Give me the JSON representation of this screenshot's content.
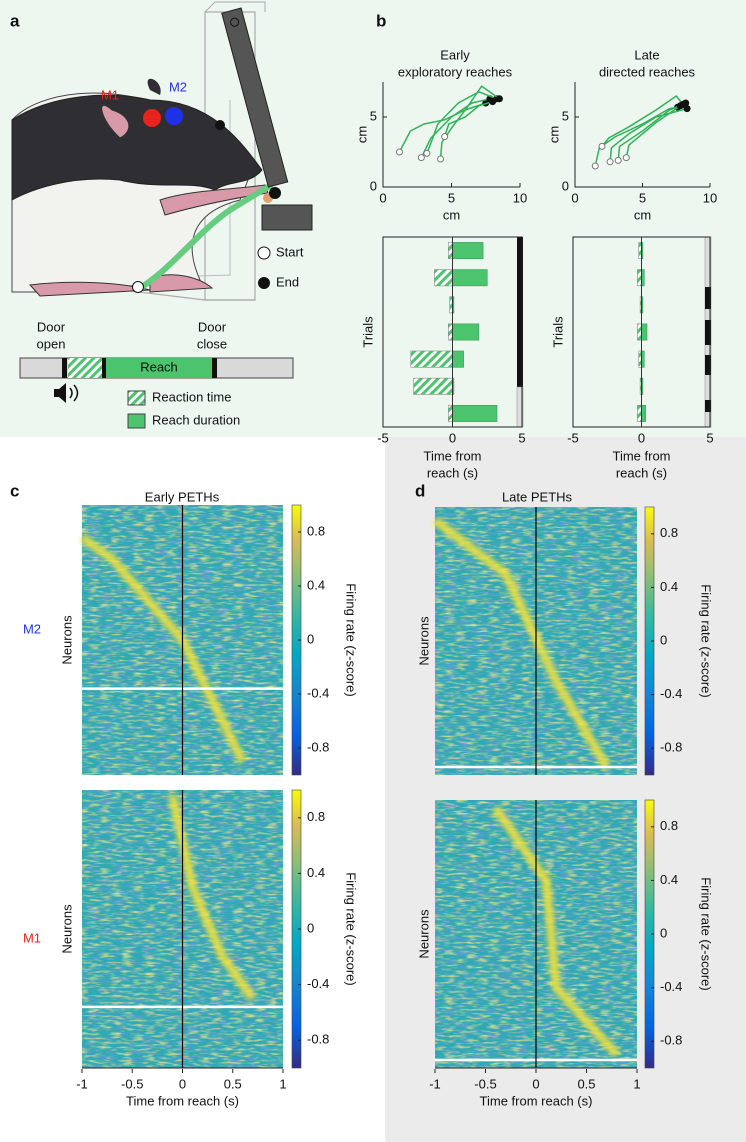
{
  "panel_labels": [
    "a",
    "b",
    "c",
    "d"
  ],
  "diagram": {
    "areas": [
      "M1",
      "M2"
    ],
    "markers": [
      "Start",
      "End"
    ],
    "door_open": [
      "Door",
      "open"
    ],
    "door_close": [
      "Door",
      "close"
    ],
    "reach": "Reach",
    "key": [
      "Reaction time",
      "Reach duration"
    ]
  },
  "chart_data": [
    {
      "type": "trajectory",
      "title": [
        "Early",
        "exploratory reaches"
      ],
      "xlabel": "cm",
      "ylabel": "cm",
      "xlim": [
        0,
        10
      ],
      "ylim": [
        0,
        7.5
      ],
      "xticks": [
        0,
        5,
        10
      ],
      "yticks": [
        0,
        5
      ],
      "color": "#2fb25a",
      "series": [
        {
          "x": [
            1.2,
            2,
            3,
            4.5,
            6,
            7.5
          ],
          "y": [
            2.5,
            4,
            4.5,
            4.8,
            5.5,
            6
          ]
        },
        {
          "x": [
            2.8,
            3.5,
            5,
            6.5,
            7.8
          ],
          "y": [
            2.1,
            3.5,
            5,
            6,
            6.3
          ]
        },
        {
          "x": [
            3.2,
            3.6,
            4,
            5.5,
            7,
            8.3
          ],
          "y": [
            2.4,
            3.4,
            4.5,
            6,
            6.8,
            6.3
          ]
        },
        {
          "x": [
            4.2,
            4.3,
            5,
            6,
            7.2,
            8.5
          ],
          "y": [
            2,
            3.2,
            4.2,
            5.5,
            7.2,
            6.3
          ]
        },
        {
          "x": [
            4.5,
            4.8,
            6,
            7,
            8
          ],
          "y": [
            3.6,
            4.5,
            5,
            5.8,
            6.1
          ]
        }
      ]
    },
    {
      "type": "trajectory",
      "title": [
        "Late",
        "directed reaches"
      ],
      "xlabel": "cm",
      "ylabel": "cm",
      "xlim": [
        0,
        10
      ],
      "ylim": [
        0,
        7.5
      ],
      "xticks": [
        0,
        5,
        10
      ],
      "yticks": [
        0,
        5
      ],
      "color": "#2fb25a",
      "series": [
        {
          "x": [
            1.5,
            1.8,
            3,
            5,
            7,
            7.6
          ],
          "y": [
            1.5,
            2.8,
            3.6,
            4.5,
            5.6,
            5.7
          ]
        },
        {
          "x": [
            2,
            2.5,
            4,
            6,
            7.5,
            8
          ],
          "y": [
            2.9,
            3.5,
            4.3,
            5.5,
            6.5,
            5.9
          ]
        },
        {
          "x": [
            2.6,
            2.7,
            4,
            6,
            8.3
          ],
          "y": [
            1.8,
            2.8,
            3.8,
            5,
            5.6
          ]
        },
        {
          "x": [
            3.2,
            3.3,
            5,
            7,
            8.2
          ],
          "y": [
            1.9,
            2.9,
            4,
            5.5,
            6
          ]
        },
        {
          "x": [
            3.8,
            4,
            6,
            7.8
          ],
          "y": [
            2.1,
            3,
            4.6,
            5.8
          ]
        }
      ]
    },
    {
      "type": "trials",
      "ylabel": "Trials",
      "xlabel": [
        "Time from",
        "reach (s)"
      ],
      "xlim": [
        -5,
        5
      ],
      "xticks": [
        -5,
        0,
        5
      ],
      "color": "#4cc46e",
      "reaction_time": [
        -0.3,
        -1.3,
        -0.2,
        -0.3,
        -3,
        -2.8,
        -0.3
      ],
      "reach_duration": [
        2.2,
        2.5,
        0.1,
        1.9,
        0.8,
        0.1,
        3.2
      ]
    },
    {
      "type": "trials",
      "ylabel": "Trials",
      "xlabel": [
        "Time from",
        "reach (s)"
      ],
      "xlim": [
        -5,
        5
      ],
      "xticks": [
        -5,
        0,
        5
      ],
      "color": "#4cc46e",
      "reaction_time": [
        -0.2,
        -0.3,
        -0.1,
        -0.3,
        -0.2,
        -0.1,
        -0.3
      ],
      "reach_duration": [
        0.1,
        0.2,
        0.1,
        0.4,
        0.2,
        0.1,
        0.3
      ]
    },
    {
      "type": "heatmap",
      "title": "Early PETHs",
      "regions": [
        "M2",
        "M1"
      ],
      "ylabel": "Neurons",
      "xlabel": "Time from reach (s)",
      "xlim": [
        -1,
        1
      ],
      "xticks": [
        -1,
        -0.5,
        0,
        0.5,
        1
      ],
      "colorbar_label": "Firing rate (z-score)",
      "clim": [
        -1,
        1
      ],
      "cticks": [
        -0.8,
        -0.4,
        0,
        0.4,
        0.8
      ]
    },
    {
      "type": "heatmap",
      "title": "Late PETHs",
      "ylabel": "Neurons",
      "xlabel": "Time from reach (s)",
      "xlim": [
        -1,
        1
      ],
      "xticks": [
        -1,
        -0.5,
        0,
        0.5,
        1
      ],
      "colorbar_label": "Firing rate (z-score)",
      "clim": [
        -1,
        1
      ],
      "cticks": [
        -0.8,
        -0.4,
        0,
        0.4,
        0.8
      ]
    }
  ]
}
